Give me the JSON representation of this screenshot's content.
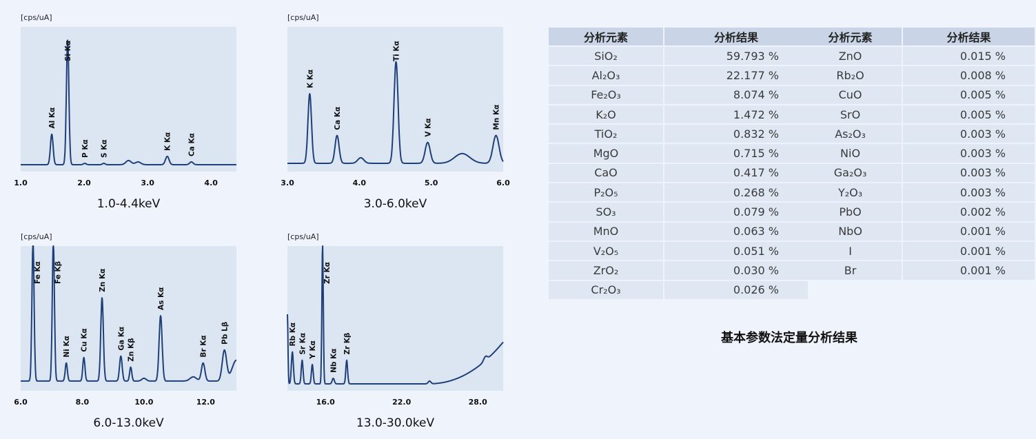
{
  "chart_data": [
    {
      "type": "line",
      "title": "1.0-4.4keV",
      "ylabel": "[cps/uA]",
      "xlim": [
        1.0,
        4.4
      ],
      "xticks": [
        "1.0",
        "2.0",
        "3.0",
        "4.0"
      ],
      "xtick_values": [
        1.0,
        2.0,
        3.0,
        4.0
      ],
      "ylim": [
        0,
        1
      ],
      "peaks": [
        {
          "label": "Al Kα",
          "x": 1.49,
          "y": 0.22
        },
        {
          "label": "Si Kα",
          "x": 1.74,
          "y": 0.9
        },
        {
          "label": "P Kα",
          "x": 2.01,
          "y": 0.01
        },
        {
          "label": "S Kα",
          "x": 2.31,
          "y": 0.01
        },
        {
          "label": "K Kα",
          "x": 3.31,
          "y": 0.06
        },
        {
          "label": "Ca Kα",
          "x": 3.69,
          "y": 0.02
        }
      ]
    },
    {
      "type": "line",
      "title": "3.0-6.0keV",
      "ylabel": "[cps/uA]",
      "xlim": [
        3.0,
        6.0
      ],
      "xticks": [
        "3.0",
        "4.0",
        "5.0",
        "6.0"
      ],
      "xtick_values": [
        3.0,
        4.0,
        5.0,
        6.0
      ],
      "ylim": [
        0,
        1
      ],
      "peaks": [
        {
          "label": "K Kα",
          "x": 3.31,
          "y": 0.5
        },
        {
          "label": "Ca Kα",
          "x": 3.69,
          "y": 0.2
        },
        {
          "label": "Ti Kα",
          "x": 4.51,
          "y": 0.73
        },
        {
          "label": "V Kα",
          "x": 4.95,
          "y": 0.15
        },
        {
          "label": "Mn Kα",
          "x": 5.9,
          "y": 0.2
        }
      ]
    },
    {
      "type": "line",
      "title": "6.0-13.0keV",
      "ylabel": "[cps/uA]",
      "xlim": [
        6.0,
        13.0
      ],
      "xticks": [
        "6.0",
        "8.0",
        "10.0",
        "12.0"
      ],
      "xtick_values": [
        6.0,
        8.0,
        10.0,
        12.0
      ],
      "ylim": [
        0,
        1
      ],
      "peaks": [
        {
          "label": "Fe Kα",
          "x": 6.4,
          "y": 1.0
        },
        {
          "label": "Fe Kβ",
          "x": 7.06,
          "y": 1.0
        },
        {
          "label": "Ni Kα",
          "x": 7.48,
          "y": 0.13
        },
        {
          "label": "Cu Kα",
          "x": 8.05,
          "y": 0.17
        },
        {
          "label": "Zn Kα",
          "x": 8.64,
          "y": 0.6
        },
        {
          "label": "Ga Kα",
          "x": 9.25,
          "y": 0.18
        },
        {
          "label": "Zn Kβ",
          "x": 9.57,
          "y": 0.1
        },
        {
          "label": "As Kα",
          "x": 10.54,
          "y": 0.47
        },
        {
          "label": "Br Kα",
          "x": 11.92,
          "y": 0.13
        },
        {
          "label": "Pb Lβ",
          "x": 12.61,
          "y": 0.22
        }
      ]
    },
    {
      "type": "line",
      "title": "13.0-30.0keV",
      "ylabel": "[cps/uA]",
      "xlim": [
        13.0,
        30.0
      ],
      "xticks": [
        "16.0",
        "22.0",
        "28.0"
      ],
      "xtick_values": [
        16.0,
        22.0,
        28.0
      ],
      "ylim": [
        0,
        1
      ],
      "peaks": [
        {
          "label": "Rb Kα",
          "x": 13.39,
          "y": 0.23
        },
        {
          "label": "Sr Kα",
          "x": 14.16,
          "y": 0.17
        },
        {
          "label": "Y Kα",
          "x": 14.96,
          "y": 0.14
        },
        {
          "label": "Zr Kα",
          "x": 15.77,
          "y": 1.0
        },
        {
          "label": "Nb Kα",
          "x": 16.61,
          "y": 0.04
        },
        {
          "label": "Zr Kβ",
          "x": 17.67,
          "y": 0.17
        }
      ]
    }
  ],
  "table_left": {
    "headers": [
      "分析元素",
      "分析结果"
    ],
    "rows": [
      [
        "SiO₂",
        "59.793 %"
      ],
      [
        "Al₂O₃",
        "22.177 %"
      ],
      [
        "Fe₂O₃",
        "8.074 %"
      ],
      [
        "K₂O",
        "1.472 %"
      ],
      [
        "TiO₂",
        "0.832 %"
      ],
      [
        "MgO",
        "0.715 %"
      ],
      [
        "CaO",
        "0.417 %"
      ],
      [
        "P₂O₅",
        "0.268 %"
      ],
      [
        "SO₃",
        "0.079 %"
      ],
      [
        "MnO",
        "0.063 %"
      ],
      [
        "V₂O₅",
        "0.051 %"
      ],
      [
        "ZrO₂",
        "0.030 %"
      ],
      [
        "Cr₂O₃",
        "0.026 %"
      ]
    ]
  },
  "table_right": {
    "headers": [
      "分析元素",
      "分析结果"
    ],
    "rows": [
      [
        "ZnO",
        "0.015 %"
      ],
      [
        "Rb₂O",
        "0.008 %"
      ],
      [
        "CuO",
        "0.005 %"
      ],
      [
        "SrO",
        "0.005 %"
      ],
      [
        "As₂O₃",
        "0.003 %"
      ],
      [
        "NiO",
        "0.003 %"
      ],
      [
        "Ga₂O₃",
        "0.003 %"
      ],
      [
        "Y₂O₃",
        "0.003 %"
      ],
      [
        "PbO",
        "0.002 %"
      ],
      [
        "NbO",
        "0.001 %"
      ],
      [
        "I",
        "0.001 %"
      ],
      [
        "Br",
        "0.001 %"
      ]
    ]
  },
  "caption": "基本参数法定量分析结果",
  "colors": {
    "spectrum": "#1f3f78",
    "plot_bg": "#dce6f3",
    "header_bg": "#c9d5e6",
    "cell_bg": "#dfe7f2"
  }
}
